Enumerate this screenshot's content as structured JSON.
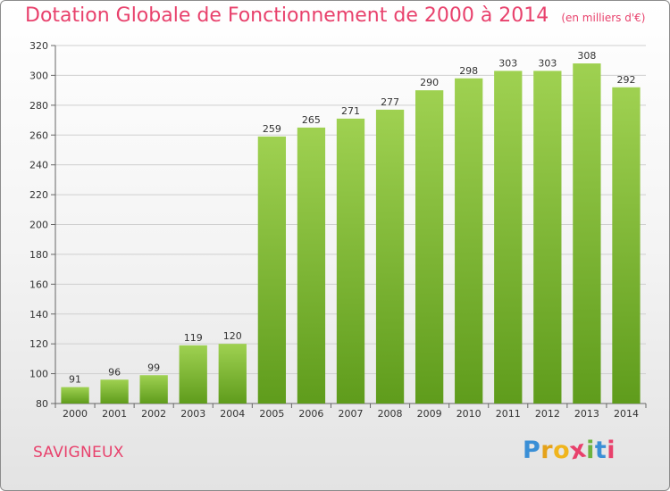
{
  "header": {
    "title": "Dotation Globale de Fonctionnement de 2000 à 2014",
    "subtitle": "(en milliers d'€)"
  },
  "footer": {
    "commune": "SAVIGNEUX",
    "brand": "Proxiti"
  },
  "colors": {
    "accent": "#e8416c",
    "bar_top": "#9fd151",
    "bar_bottom": "#5f9c1c"
  },
  "chart_data": {
    "type": "bar",
    "title": "Dotation Globale de Fonctionnement de 2000 à 2014",
    "subtitle": "(en milliers d'€)",
    "xlabel": "",
    "ylabel": "",
    "categories": [
      "2000",
      "2001",
      "2002",
      "2003",
      "2004",
      "2005",
      "2006",
      "2007",
      "2008",
      "2009",
      "2010",
      "2011",
      "2012",
      "2013",
      "2014"
    ],
    "values": [
      91,
      96,
      99,
      119,
      120,
      259,
      265,
      271,
      277,
      290,
      298,
      303,
      303,
      308,
      292
    ],
    "ylim": [
      80,
      320
    ],
    "yticks": [
      80,
      100,
      120,
      140,
      160,
      180,
      200,
      220,
      240,
      260,
      280,
      300,
      320
    ],
    "grid": true,
    "legend": "none"
  }
}
